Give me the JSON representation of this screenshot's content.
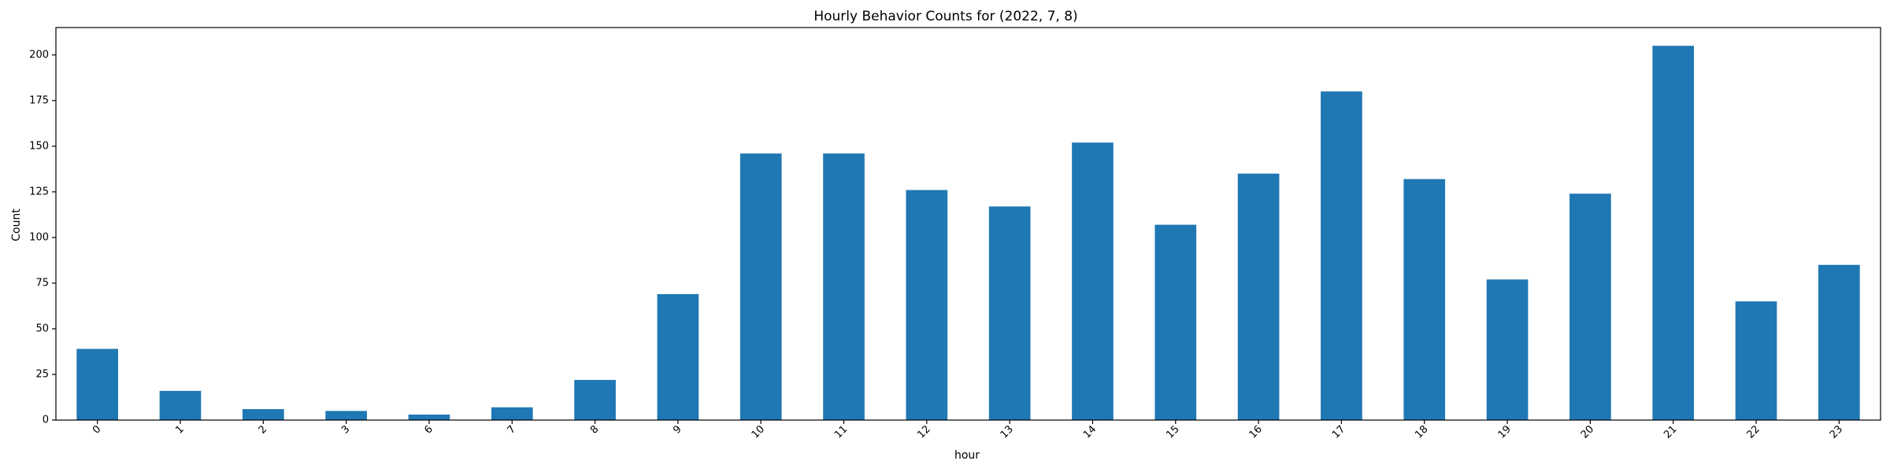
{
  "chart_data": {
    "type": "bar",
    "title": "Hourly Behavior Counts for (2022, 7, 8)",
    "xlabel": "hour",
    "ylabel": "Count",
    "categories": [
      "0",
      "1",
      "2",
      "3",
      "6",
      "7",
      "8",
      "9",
      "10",
      "11",
      "12",
      "13",
      "14",
      "15",
      "16",
      "17",
      "18",
      "19",
      "20",
      "21",
      "22",
      "23"
    ],
    "values": [
      39,
      16,
      6,
      5,
      3,
      7,
      22,
      69,
      146,
      146,
      126,
      117,
      152,
      107,
      135,
      180,
      132,
      77,
      124,
      205,
      65,
      85
    ],
    "ylim": [
      0,
      215
    ],
    "yticks": [
      "0",
      "25",
      "50",
      "75",
      "100",
      "125",
      "150",
      "175",
      "200"
    ],
    "bar_color": "#1f77b4",
    "grid": false,
    "legend": "none"
  }
}
